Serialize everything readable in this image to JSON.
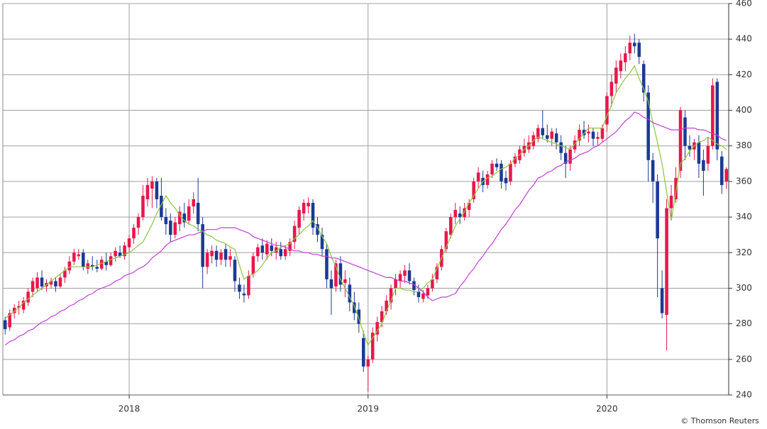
{
  "chart_data": {
    "type": "candlestick",
    "categories": [
      null,
      null,
      null,
      null,
      null,
      null,
      null,
      null,
      null,
      null,
      null,
      null,
      null,
      null,
      null,
      null,
      null,
      null,
      null,
      null,
      null,
      null,
      null,
      null,
      null,
      null,
      null,
      "2018",
      null,
      null,
      null,
      null,
      null,
      null,
      null,
      null,
      null,
      null,
      null,
      null,
      null,
      null,
      null,
      null,
      null,
      null,
      null,
      null,
      null,
      null,
      null,
      null,
      null,
      null,
      null,
      null,
      null,
      null,
      null,
      null,
      null,
      null,
      null,
      null,
      null,
      null,
      null,
      null,
      null,
      null,
      null,
      null,
      null,
      null,
      null,
      null,
      null,
      null,
      null,
      "2019",
      null,
      null,
      null,
      null,
      null,
      null,
      null,
      null,
      null,
      null,
      null,
      null,
      null,
      null,
      null,
      null,
      null,
      null,
      null,
      null,
      null,
      null,
      null,
      null,
      null,
      null,
      null,
      null,
      null,
      null,
      null,
      null,
      null,
      null,
      null,
      null,
      null,
      null,
      null,
      null,
      null,
      null,
      null,
      null,
      null,
      null,
      null,
      null,
      null,
      null,
      null,
      "2020",
      null,
      null,
      null,
      null,
      null,
      null,
      null,
      null,
      null,
      null,
      null,
      null,
      null,
      null,
      null,
      null,
      null,
      null,
      null,
      null,
      null,
      null,
      null,
      null,
      null,
      null
    ],
    "open": [
      282,
      278,
      286,
      289,
      288,
      292,
      298,
      300,
      306,
      301,
      302,
      304,
      301,
      306,
      310,
      315,
      318,
      320,
      311,
      313,
      312,
      311,
      315,
      313,
      318,
      320,
      318,
      323,
      328,
      334,
      340,
      350,
      356,
      360,
      352,
      340,
      338,
      330,
      336,
      342,
      338,
      346,
      348,
      336,
      312,
      318,
      321,
      316,
      322,
      316,
      316,
      302,
      297,
      296,
      308,
      318,
      324,
      319,
      324,
      320,
      322,
      318,
      321,
      326,
      334,
      342,
      346,
      348,
      336,
      330,
      322,
      305,
      301,
      314,
      303,
      302,
      292,
      288,
      272,
      256,
      260,
      274,
      281,
      287,
      292,
      300,
      304,
      307,
      310,
      304,
      298,
      294,
      296,
      300,
      305,
      312,
      322,
      330,
      340,
      342,
      340,
      344,
      350,
      360,
      362,
      358,
      364,
      370,
      370,
      362,
      360,
      370,
      372,
      376,
      378,
      380,
      384,
      390,
      386,
      384,
      387,
      382,
      376,
      370,
      378,
      383,
      389,
      387,
      388,
      384,
      384,
      392,
      408,
      415,
      422,
      427,
      432,
      438,
      438,
      426,
      410,
      372,
      360,
      300,
      285,
      345,
      350,
      366,
      396,
      380,
      378,
      382,
      372,
      370,
      380,
      416,
      374,
      360
    ],
    "high": [
      284,
      288,
      291,
      293,
      295,
      300,
      306,
      309,
      310,
      305,
      306,
      306,
      308,
      312,
      318,
      322,
      322,
      322,
      316,
      318,
      316,
      318,
      320,
      320,
      323,
      324,
      326,
      330,
      336,
      342,
      358,
      362,
      363,
      362,
      362,
      345,
      342,
      340,
      346,
      348,
      350,
      354,
      362,
      340,
      322,
      324,
      324,
      322,
      325,
      322,
      318,
      306,
      302,
      310,
      320,
      325,
      328,
      327,
      328,
      326,
      326,
      324,
      328,
      338,
      346,
      350,
      351,
      350,
      340,
      334,
      325,
      310,
      316,
      318,
      310,
      306,
      298,
      292,
      276,
      262,
      278,
      284,
      290,
      296,
      302,
      308,
      310,
      313,
      314,
      306,
      302,
      299,
      302,
      308,
      314,
      324,
      334,
      342,
      348,
      346,
      348,
      350,
      362,
      368,
      366,
      366,
      372,
      373,
      372,
      366,
      372,
      376,
      380,
      384,
      386,
      388,
      392,
      400,
      392,
      390,
      390,
      386,
      380,
      380,
      386,
      392,
      394,
      392,
      390,
      388,
      392,
      410,
      420,
      428,
      432,
      436,
      442,
      443,
      440,
      428,
      414,
      376,
      364,
      310,
      350,
      358,
      368,
      402,
      400,
      386,
      384,
      386,
      378,
      385,
      418,
      418,
      377,
      368
    ],
    "low": [
      274,
      276,
      283,
      285,
      286,
      290,
      295,
      298,
      299,
      298,
      300,
      298,
      300,
      303,
      308,
      313,
      316,
      310,
      308,
      310,
      309,
      310,
      310,
      312,
      315,
      317,
      316,
      320,
      325,
      330,
      338,
      346,
      345,
      345,
      338,
      330,
      326,
      328,
      332,
      334,
      336,
      342,
      332,
      300,
      308,
      314,
      312,
      313,
      312,
      312,
      298,
      294,
      292,
      294,
      306,
      315,
      316,
      316,
      318,
      316,
      316,
      316,
      318,
      322,
      330,
      338,
      342,
      330,
      326,
      318,
      300,
      285,
      298,
      298,
      295,
      287,
      282,
      275,
      253,
      242,
      258,
      270,
      278,
      285,
      288,
      296,
      300,
      303,
      302,
      296,
      292,
      292,
      294,
      298,
      303,
      310,
      320,
      328,
      336,
      336,
      338,
      340,
      348,
      356,
      354,
      356,
      362,
      366,
      356,
      355,
      358,
      368,
      370,
      374,
      376,
      378,
      382,
      384,
      382,
      380,
      378,
      372,
      362,
      366,
      376,
      380,
      384,
      382,
      380,
      380,
      382,
      388,
      402,
      410,
      418,
      422,
      428,
      432,
      426,
      405,
      360,
      348,
      295,
      283,
      265,
      340,
      348,
      362,
      372,
      374,
      372,
      362,
      352,
      366,
      378,
      372,
      353,
      356
    ],
    "close": [
      277,
      286,
      289,
      290,
      293,
      298,
      304,
      306,
      301,
      303,
      304,
      301,
      306,
      310,
      315,
      320,
      319,
      312,
      314,
      312,
      311,
      316,
      313,
      318,
      321,
      318,
      324,
      328,
      334,
      340,
      352,
      358,
      360,
      350,
      340,
      336,
      330,
      337,
      343,
      337,
      346,
      350,
      336,
      312,
      320,
      321,
      316,
      320,
      316,
      318,
      304,
      298,
      296,
      307,
      318,
      323,
      320,
      325,
      321,
      323,
      318,
      322,
      326,
      335,
      344,
      348,
      348,
      334,
      330,
      322,
      305,
      300,
      314,
      302,
      305,
      292,
      286,
      280,
      256,
      260,
      275,
      281,
      287,
      293,
      300,
      305,
      308,
      310,
      304,
      299,
      295,
      297,
      300,
      305,
      312,
      322,
      332,
      340,
      344,
      340,
      345,
      348,
      360,
      365,
      358,
      364,
      370,
      368,
      360,
      359,
      370,
      374,
      378,
      380,
      382,
      386,
      390,
      386,
      384,
      388,
      382,
      376,
      370,
      378,
      383,
      389,
      386,
      388,
      384,
      385,
      390,
      408,
      416,
      424,
      428,
      432,
      438,
      436,
      430,
      410,
      372,
      360,
      328,
      286,
      345,
      352,
      362,
      400,
      380,
      378,
      382,
      370,
      366,
      380,
      414,
      378,
      358,
      367
    ],
    "up_color": "#e8174b",
    "down_color": "#1a3a94",
    "lines": [
      {
        "color": "#8cc63f",
        "values": [
          283,
          285,
          287,
          289,
          292,
          294,
          296,
          298,
          300,
          302,
          304,
          306,
          308,
          310,
          312,
          312,
          312,
          312,
          312,
          312,
          313,
          314,
          315,
          316,
          317,
          318,
          319,
          320,
          322,
          324,
          326,
          331,
          336,
          342,
          347,
          352,
          348,
          345,
          341,
          338,
          336,
          335,
          333,
          332,
          330,
          329,
          327,
          326,
          325,
          323,
          322,
          313,
          305,
          307,
          308,
          310,
          313,
          317,
          320,
          321,
          323,
          324,
          325,
          328,
          330,
          333,
          335,
          338,
          334,
          329,
          325,
          318,
          312,
          305,
          300,
          295,
          290,
          283,
          275,
          268,
          272,
          276,
          280,
          287,
          293,
          300,
          300,
          299,
          299,
          298,
          298,
          300,
          303,
          305,
          311,
          317,
          323,
          329,
          335,
          339,
          343,
          348,
          352,
          356,
          360,
          362,
          363,
          365,
          367,
          368,
          370,
          373,
          375,
          378,
          380,
          383,
          385,
          384,
          383,
          382,
          381,
          380,
          379,
          378,
          381,
          384,
          387,
          390,
          390,
          390,
          390,
          397,
          403,
          410,
          414,
          418,
          421,
          425,
          418,
          412,
          405,
          393,
          382,
          370,
          354,
          338,
          354,
          370,
          373,
          377,
          380,
          382,
          383,
          385,
          383,
          381,
          380,
          378
        ]
      },
      {
        "color": "#c23fd8",
        "values": [
          268,
          270,
          271,
          273,
          274,
          276,
          277,
          279,
          281,
          282,
          284,
          285,
          287,
          288,
          290,
          291,
          293,
          294,
          296,
          297,
          299,
          300,
          301,
          302,
          304,
          305,
          307,
          308,
          309,
          311,
          312,
          314,
          317,
          319,
          321,
          324,
          326,
          327,
          328,
          329,
          330,
          330,
          331,
          332,
          333,
          333,
          333,
          334,
          334,
          334,
          334,
          333,
          332,
          331,
          329,
          328,
          327,
          326,
          325,
          324,
          324,
          323,
          322,
          321,
          321,
          320,
          320,
          319,
          319,
          318,
          318,
          317,
          317,
          316,
          315,
          314,
          313,
          312,
          311,
          310,
          309,
          308,
          307,
          306,
          306,
          305,
          304,
          304,
          303,
          302,
          300,
          298,
          295,
          293,
          294,
          295,
          295,
          296,
          297,
          301,
          304,
          308,
          311,
          315,
          318,
          322,
          325,
          329,
          333,
          336,
          340,
          344,
          347,
          351,
          355,
          358,
          362,
          363,
          365,
          366,
          368,
          369,
          371,
          372,
          373,
          375,
          376,
          377,
          379,
          380,
          382,
          384,
          386,
          388,
          391,
          394,
          396,
          399,
          398,
          396,
          395,
          393,
          392,
          391,
          390,
          389,
          389,
          389,
          390,
          390,
          390,
          389,
          389,
          388,
          387,
          386,
          384,
          383
        ]
      }
    ],
    "ylim": [
      240,
      460
    ],
    "yticks": [
      240,
      260,
      280,
      300,
      320,
      340,
      360,
      380,
      400,
      420,
      440,
      460
    ],
    "grid": true,
    "y_axis_side": "right",
    "source": "© Thomson Reuters"
  }
}
